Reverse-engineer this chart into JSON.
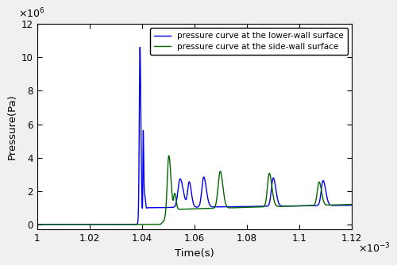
{
  "xlabel": "Time(s)",
  "ylabel": "Pressure(Pa)",
  "xscale_label": "x 10$^{-3}$",
  "yscale_label": "x 10$^6$",
  "xlim": [
    1.0,
    1.12
  ],
  "ylim": [
    -0.3,
    12
  ],
  "xticks": [
    1.0,
    1.02,
    1.04,
    1.06,
    1.08,
    1.1,
    1.12
  ],
  "yticks": [
    0,
    2,
    4,
    6,
    8,
    10,
    12
  ],
  "blue_label": "pressure curve at the lower-wall surface",
  "green_label": "pressure curve at the side-wall surface",
  "blue_color": "#0000ee",
  "green_color": "#006400",
  "linewidth": 1.0,
  "figsize": [
    5.0,
    3.34
  ],
  "dpi": 100
}
